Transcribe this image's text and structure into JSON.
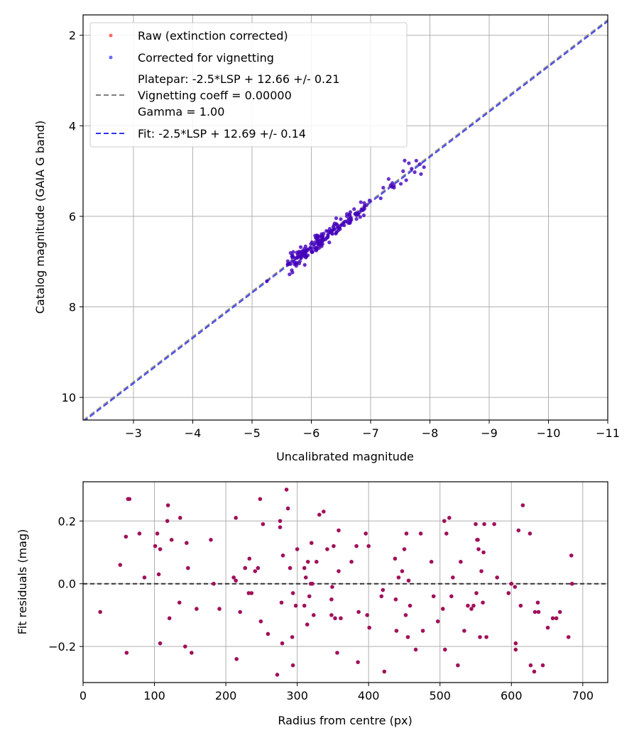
{
  "chart_data": [
    {
      "type": "scatter",
      "xlabel": "Uncalibrated magnitude",
      "ylabel": "Catalog magnitude (GAIA G band)",
      "xlim": [
        -2.15,
        -11.0
      ],
      "ylim": [
        10.5,
        1.55
      ],
      "x_ticks": [
        -3,
        -4,
        -5,
        -6,
        -7,
        -8,
        -9,
        -10,
        -11
      ],
      "x_tick_labels": [
        "−3",
        "−4",
        "−5",
        "−6",
        "−7",
        "−8",
        "−9",
        "−10",
        "−11"
      ],
      "y_ticks": [
        2,
        4,
        6,
        8,
        10
      ],
      "y_tick_labels": [
        "2",
        "4",
        "6",
        "8",
        "10"
      ],
      "grid": true,
      "legend_position": "upper-left",
      "legend": [
        {
          "label": "Raw (extinction corrected)",
          "kind": "marker",
          "color": "#ff0000"
        },
        {
          "label": "Corrected for vignetting",
          "kind": "marker",
          "color": "#0000ff"
        },
        {
          "label": "Platepar: -2.5*LSP + 12.66 +/- 0.21",
          "label2": "Vignetting coeff = 0.00000",
          "label3": "Gamma = 1.00",
          "kind": "dashed",
          "color": "#808080"
        },
        {
          "label": "Fit: -2.5*LSP + 12.69 +/- 0.14",
          "kind": "dashed",
          "color": "#3333ee"
        }
      ],
      "fit_lines": [
        {
          "name": "Platepar",
          "offset": 12.66,
          "color": "#808080"
        },
        {
          "name": "Fit",
          "offset": 12.69,
          "color": "#3333ee"
        }
      ],
      "colors": {
        "raw": "#ff0000",
        "corrected": "#0000ff",
        "overlap": "#5a14b4"
      },
      "series": [
        {
          "name": "Corrected for vignetting",
          "x_range": [
            -5.2,
            -7.9
          ],
          "offset": 12.69,
          "n_points": 200
        }
      ]
    },
    {
      "type": "scatter",
      "xlabel": "Radius from centre (px)",
      "ylabel": "Fit residuals (mag)",
      "xlim": [
        0,
        735
      ],
      "ylim": [
        -0.315,
        0.325
      ],
      "x_ticks": [
        0,
        100,
        200,
        300,
        400,
        500,
        600,
        700
      ],
      "x_tick_labels": [
        "0",
        "100",
        "200",
        "300",
        "400",
        "500",
        "600",
        "700"
      ],
      "y_ticks": [
        -0.2,
        0.0,
        0.2
      ],
      "y_tick_labels": [
        "−0.2",
        "0.0",
        "0.2"
      ],
      "grid": true,
      "hline": 0.0,
      "colors": {
        "points": "#a0105a",
        "hline": "#333333"
      },
      "points": [
        [
          24,
          -0.09
        ],
        [
          52,
          0.06
        ],
        [
          60,
          0.15
        ],
        [
          61,
          -0.22
        ],
        [
          63,
          0.27
        ],
        [
          65,
          0.27
        ],
        [
          79,
          0.16
        ],
        [
          86,
          0.02
        ],
        [
          101,
          0.12
        ],
        [
          104,
          0.16
        ],
        [
          106,
          0.03
        ],
        [
          108,
          0.11
        ],
        [
          108,
          -0.19
        ],
        [
          118,
          0.2
        ],
        [
          119,
          0.25
        ],
        [
          121,
          -0.11
        ],
        [
          124,
          0.14
        ],
        [
          135,
          -0.06
        ],
        [
          136,
          0.21
        ],
        [
          143,
          -0.2
        ],
        [
          145,
          0.13
        ],
        [
          147,
          0.05
        ],
        [
          152,
          -0.22
        ],
        [
          159,
          -0.08
        ],
        [
          179,
          0.14
        ],
        [
          183,
          0.0
        ],
        [
          191,
          -0.08
        ],
        [
          211,
          0.02
        ],
        [
          214,
          0.01
        ],
        [
          214,
          0.21
        ],
        [
          215,
          -0.24
        ],
        [
          220,
          -0.09
        ],
        [
          227,
          0.05
        ],
        [
          232,
          -0.03
        ],
        [
          233,
          0.08
        ],
        [
          236,
          -0.03
        ],
        [
          241,
          0.04
        ],
        [
          245,
          0.05
        ],
        [
          248,
          0.27
        ],
        [
          249,
          -0.12
        ],
        [
          252,
          0.19
        ],
        [
          259,
          -0.16
        ],
        [
          272,
          -0.29
        ],
        [
          276,
          0.2
        ],
        [
          276,
          0.18
        ],
        [
          278,
          -0.06
        ],
        [
          279,
          -0.19
        ],
        [
          280,
          0.09
        ],
        [
          285,
          0.3
        ],
        [
          287,
          0.24
        ],
        [
          290,
          0.05
        ],
        [
          293,
          -0.17
        ],
        [
          294,
          -0.26
        ],
        [
          294,
          -0.03
        ],
        [
          298,
          -0.07
        ],
        [
          300,
          0.11
        ],
        [
          310,
          -0.07
        ],
        [
          310,
          0.05
        ],
        [
          312,
          0.02
        ],
        [
          314,
          -0.13
        ],
        [
          315,
          0.07
        ],
        [
          317,
          -0.04
        ],
        [
          319,
          0.0
        ],
        [
          320,
          0.13
        ],
        [
          321,
          0.0
        ],
        [
          323,
          -0.1
        ],
        [
          327,
          0.07
        ],
        [
          331,
          0.22
        ],
        [
          337,
          0.23
        ],
        [
          342,
          0.11
        ],
        [
          348,
          -0.1
        ],
        [
          348,
          -0.05
        ],
        [
          349,
          -0.01
        ],
        [
          351,
          0.12
        ],
        [
          353,
          -0.11
        ],
        [
          356,
          -0.22
        ],
        [
          358,
          0.04
        ],
        [
          358,
          0.17
        ],
        [
          361,
          -0.11
        ],
        [
          376,
          0.07
        ],
        [
          383,
          0.12
        ],
        [
          385,
          -0.25
        ],
        [
          386,
          -0.09
        ],
        [
          396,
          0.16
        ],
        [
          398,
          -0.1
        ],
        [
          400,
          0.12
        ],
        [
          401,
          -0.14
        ],
        [
          418,
          -0.04
        ],
        [
          420,
          -0.02
        ],
        [
          422,
          -0.28
        ],
        [
          437,
          0.08
        ],
        [
          438,
          -0.05
        ],
        [
          439,
          -0.15
        ],
        [
          442,
          0.02
        ],
        [
          447,
          0.04
        ],
        [
          450,
          0.11
        ],
        [
          452,
          -0.1
        ],
        [
          453,
          0.16
        ],
        [
          455,
          -0.17
        ],
        [
          456,
          0.01
        ],
        [
          458,
          -0.07
        ],
        [
          466,
          -0.21
        ],
        [
          473,
          0.16
        ],
        [
          476,
          -0.15
        ],
        [
          488,
          0.07
        ],
        [
          491,
          -0.04
        ],
        [
          497,
          -0.12
        ],
        [
          504,
          -0.08
        ],
        [
          506,
          0.2
        ],
        [
          507,
          -0.21
        ],
        [
          509,
          0.16
        ],
        [
          513,
          0.21
        ],
        [
          516,
          -0.04
        ],
        [
          518,
          0.02
        ],
        [
          525,
          -0.26
        ],
        [
          529,
          0.07
        ],
        [
          534,
          -0.15
        ],
        [
          539,
          -0.07
        ],
        [
          544,
          -0.08
        ],
        [
          547,
          -0.07
        ],
        [
          550,
          0.19
        ],
        [
          551,
          -0.03
        ],
        [
          552,
          0.14
        ],
        [
          553,
          0.14
        ],
        [
          554,
          0.11
        ],
        [
          556,
          -0.17
        ],
        [
          558,
          0.04
        ],
        [
          560,
          -0.06
        ],
        [
          561,
          0.1
        ],
        [
          562,
          0.19
        ],
        [
          565,
          -0.17
        ],
        [
          576,
          0.19
        ],
        [
          580,
          0.02
        ],
        [
          596,
          -0.03
        ],
        [
          600,
          0.0
        ],
        [
          605,
          -0.01
        ],
        [
          606,
          -0.19
        ],
        [
          606,
          -0.21
        ],
        [
          610,
          0.17
        ],
        [
          613,
          -0.07
        ],
        [
          616,
          0.25
        ],
        [
          626,
          0.16
        ],
        [
          627,
          -0.26
        ],
        [
          632,
          -0.28
        ],
        [
          633,
          -0.09
        ],
        [
          637,
          -0.06
        ],
        [
          638,
          -0.09
        ],
        [
          644,
          -0.26
        ],
        [
          651,
          -0.14
        ],
        [
          658,
          -0.11
        ],
        [
          663,
          -0.11
        ],
        [
          668,
          -0.09
        ],
        [
          680,
          -0.17
        ],
        [
          684,
          0.09
        ],
        [
          685,
          0.0
        ]
      ]
    }
  ]
}
